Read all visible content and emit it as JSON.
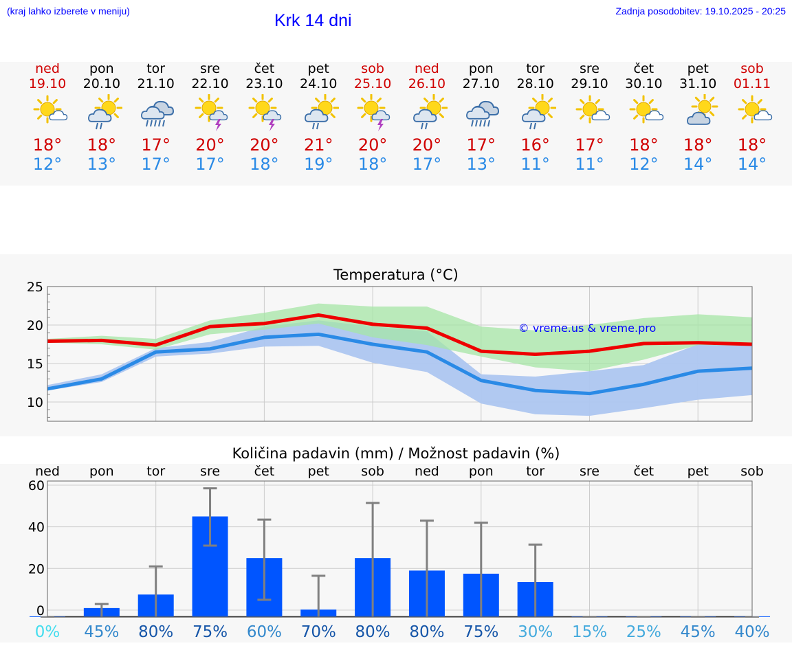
{
  "header": {
    "note": "(kraj lahko izberete v meniju)",
    "title": "Krk 14 dni",
    "updated": "Zadnja posodobitev: 19.10.2025 - 20:25"
  },
  "days": [
    {
      "name": "ned",
      "date": "19.10",
      "weekend": true,
      "icon": "sun-cloud-icon",
      "tmax": "18°",
      "tmin": "12°"
    },
    {
      "name": "pon",
      "date": "20.10",
      "weekend": false,
      "icon": "sun-cloud-rain-icon",
      "tmax": "18°",
      "tmin": "13°"
    },
    {
      "name": "tor",
      "date": "21.10",
      "weekend": false,
      "icon": "cloud-heavy-rain-icon",
      "tmax": "17°",
      "tmin": "17°"
    },
    {
      "name": "sre",
      "date": "22.10",
      "weekend": false,
      "icon": "sun-thunderstorm-icon",
      "tmax": "20°",
      "tmin": "17°"
    },
    {
      "name": "čet",
      "date": "23.10",
      "weekend": false,
      "icon": "sun-thunderstorm-icon",
      "tmax": "20°",
      "tmin": "18°"
    },
    {
      "name": "pet",
      "date": "24.10",
      "weekend": false,
      "icon": "sun-cloud-rain-icon",
      "tmax": "21°",
      "tmin": "19°"
    },
    {
      "name": "sob",
      "date": "25.10",
      "weekend": true,
      "icon": "sun-thunderstorm-icon",
      "tmax": "20°",
      "tmin": "18°"
    },
    {
      "name": "ned",
      "date": "26.10",
      "weekend": true,
      "icon": "sun-cloud-rain-icon",
      "tmax": "20°",
      "tmin": "17°"
    },
    {
      "name": "pon",
      "date": "27.10",
      "weekend": false,
      "icon": "cloud-heavy-rain-icon",
      "tmax": "17°",
      "tmin": "13°"
    },
    {
      "name": "tor",
      "date": "28.10",
      "weekend": false,
      "icon": "sun-cloud-rain-icon",
      "tmax": "16°",
      "tmin": "11°"
    },
    {
      "name": "sre",
      "date": "29.10",
      "weekend": false,
      "icon": "sun-cloud-icon",
      "tmax": "17°",
      "tmin": "11°"
    },
    {
      "name": "čet",
      "date": "30.10",
      "weekend": false,
      "icon": "sun-cloud-icon",
      "tmax": "18°",
      "tmin": "12°"
    },
    {
      "name": "pet",
      "date": "31.10",
      "weekend": false,
      "icon": "cloud-sun-icon",
      "tmax": "18°",
      "tmin": "14°"
    },
    {
      "name": "sob",
      "date": "01.11",
      "weekend": true,
      "icon": "sun-cloud-icon",
      "tmax": "18°",
      "tmin": "14°"
    }
  ],
  "colors": {
    "max_line": "#ee0000",
    "min_line": "#2a8ae6",
    "max_band": "#a6e6a6",
    "min_band": "#adc6f0",
    "overlap_band": "#80c8a6",
    "bar": "#0055ff",
    "error_bar": "#808080",
    "weekend": "#d00000"
  },
  "chart_data": [
    {
      "type": "line",
      "title": "Temperatura (°C)",
      "watermark": "© vreme.us & vreme.pro",
      "ylim": [
        7.5,
        25
      ],
      "yticks": [
        10,
        15,
        20,
        25
      ],
      "categories": [
        "ned",
        "pon",
        "tor",
        "sre",
        "čet",
        "pet",
        "sob",
        "ned",
        "pon",
        "tor",
        "sre",
        "čet",
        "pet",
        "sob"
      ],
      "series": [
        {
          "name": "max",
          "values": [
            17.9,
            18.0,
            17.4,
            19.8,
            20.2,
            21.3,
            20.1,
            19.6,
            16.6,
            16.2,
            16.6,
            17.6,
            17.7,
            17.5
          ]
        },
        {
          "name": "min",
          "values": [
            11.7,
            13.0,
            16.5,
            16.9,
            18.4,
            18.8,
            17.5,
            16.5,
            12.8,
            11.5,
            11.1,
            12.3,
            14.0,
            14.4
          ]
        },
        {
          "name": "max_range_low",
          "values": [
            17.7,
            17.5,
            16.8,
            18.8,
            19.4,
            20.2,
            18.4,
            17.4,
            15.9,
            14.5,
            14.0,
            15.5,
            17.4,
            17.3
          ]
        },
        {
          "name": "max_range_high",
          "values": [
            18.2,
            18.6,
            18.2,
            20.6,
            21.6,
            22.8,
            22.4,
            22.4,
            19.8,
            19.3,
            20.0,
            20.9,
            21.4,
            21.0
          ]
        },
        {
          "name": "min_range_low",
          "values": [
            11.5,
            12.6,
            15.9,
            16.3,
            17.2,
            17.3,
            15.1,
            13.9,
            9.8,
            8.4,
            8.2,
            9.2,
            10.3,
            10.9
          ]
        },
        {
          "name": "min_range_high",
          "values": [
            12.2,
            13.6,
            17.0,
            17.8,
            19.8,
            20.6,
            19.8,
            19.2,
            13.6,
            13.3,
            14.0,
            14.8,
            17.5,
            17.7
          ]
        }
      ]
    },
    {
      "type": "bar",
      "title": "Količina padavin (mm) / Možnost padavin (%)",
      "ylim": [
        -3,
        62
      ],
      "yticks": [
        0,
        20,
        40,
        60
      ],
      "categories": [
        "ned",
        "pon",
        "tor",
        "sre",
        "čet",
        "pet",
        "sob",
        "ned",
        "pon",
        "tor",
        "sre",
        "čet",
        "pet",
        "sob"
      ],
      "values": [
        0,
        1,
        7.5,
        45,
        25,
        0.3,
        25,
        19,
        17.5,
        13.5,
        0,
        0,
        0,
        0
      ],
      "error_high": [
        0,
        3,
        21,
        58.5,
        43.5,
        16.5,
        51.5,
        43,
        42,
        31.5,
        0,
        0,
        0,
        0
      ],
      "error_low": [
        0,
        0,
        0,
        31,
        5,
        0,
        0,
        0,
        0,
        0,
        0,
        0,
        0,
        0
      ],
      "probability": [
        "0%",
        "45%",
        "80%",
        "75%",
        "60%",
        "70%",
        "80%",
        "80%",
        "75%",
        "30%",
        "15%",
        "25%",
        "45%",
        "40%"
      ],
      "probability_colors": [
        "#44ddee",
        "#3388cc",
        "#1555a8",
        "#1555a8",
        "#3388cc",
        "#1555a8",
        "#1555a8",
        "#1555a8",
        "#1555a8",
        "#44aadd",
        "#44aadd",
        "#44aadd",
        "#3388cc",
        "#3388cc"
      ]
    }
  ]
}
